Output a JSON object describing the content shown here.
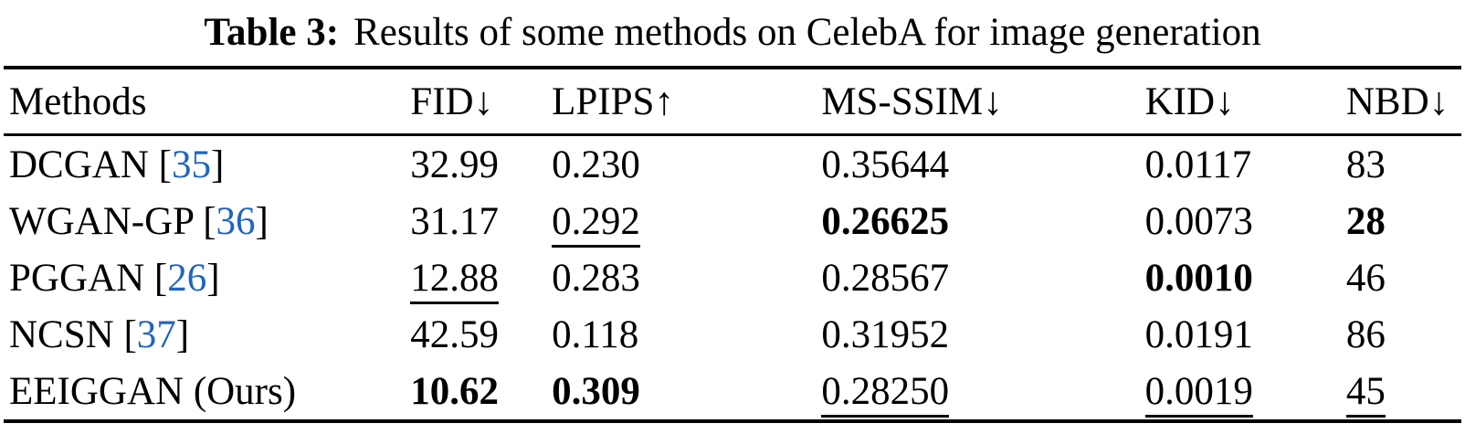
{
  "caption": {
    "label": "Table 3:",
    "text": "Results of some methods on CelebA for image generation"
  },
  "symbols": {
    "cite_open": "[",
    "cite_close": "]"
  },
  "colors": {
    "citation_blue": "#2065c0",
    "text": "#000000",
    "background": "#ffffff"
  },
  "table": {
    "columns": [
      {
        "label": "Methods",
        "arrow": ""
      },
      {
        "label": "FID",
        "arrow": "↓"
      },
      {
        "label": "LPIPS",
        "arrow": "↑"
      },
      {
        "label": "MS-SSIM",
        "arrow": "↓"
      },
      {
        "label": "KID",
        "arrow": "↓"
      },
      {
        "label": "NBD",
        "arrow": "↓"
      }
    ],
    "rows": [
      {
        "method": "DCGAN",
        "cite": "35",
        "cells": [
          {
            "v": "32.99",
            "s": "normal"
          },
          {
            "v": "0.230",
            "s": "normal"
          },
          {
            "v": "0.35644",
            "s": "normal"
          },
          {
            "v": "0.0117",
            "s": "normal"
          },
          {
            "v": "83",
            "s": "normal"
          }
        ]
      },
      {
        "method": "WGAN-GP",
        "cite": "36",
        "cells": [
          {
            "v": "31.17",
            "s": "normal"
          },
          {
            "v": "0.292",
            "s": "underline"
          },
          {
            "v": "0.26625",
            "s": "bold"
          },
          {
            "v": "0.0073",
            "s": "normal"
          },
          {
            "v": "28",
            "s": "bold"
          }
        ]
      },
      {
        "method": "PGGAN",
        "cite": "26",
        "cells": [
          {
            "v": "12.88",
            "s": "underline"
          },
          {
            "v": "0.283",
            "s": "normal"
          },
          {
            "v": "0.28567",
            "s": "normal"
          },
          {
            "v": "0.0010",
            "s": "bold"
          },
          {
            "v": "46",
            "s": "normal"
          }
        ]
      },
      {
        "method": "NCSN",
        "cite": "37",
        "cells": [
          {
            "v": "42.59",
            "s": "normal"
          },
          {
            "v": "0.118",
            "s": "normal"
          },
          {
            "v": "0.31952",
            "s": "normal"
          },
          {
            "v": "0.0191",
            "s": "normal"
          },
          {
            "v": "86",
            "s": "normal"
          }
        ]
      },
      {
        "method": "EEIGGAN (Ours)",
        "cite": "",
        "cells": [
          {
            "v": "10.62",
            "s": "bold"
          },
          {
            "v": "0.309",
            "s": "bold"
          },
          {
            "v": "0.28250",
            "s": "underline"
          },
          {
            "v": "0.0019",
            "s": "underline"
          },
          {
            "v": "45",
            "s": "underline"
          }
        ]
      }
    ]
  }
}
